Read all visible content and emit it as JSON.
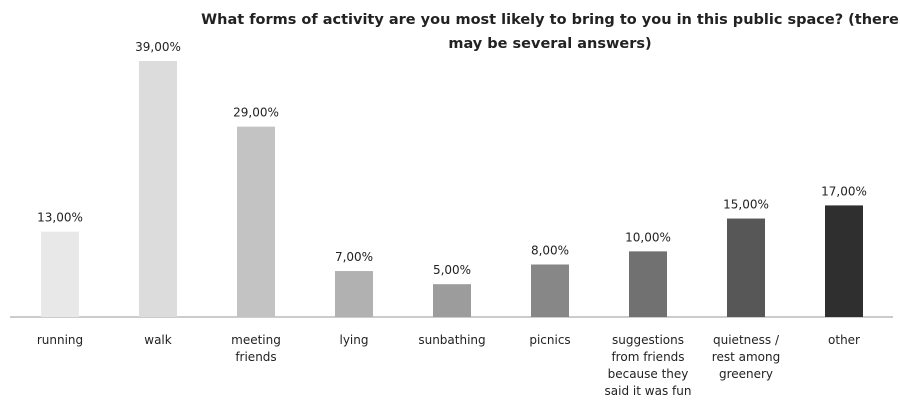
{
  "chart_data": {
    "type": "bar",
    "title": "What forms of activity are you most likely to bring to you in this public space? (there may be several answers)",
    "xlabel": "",
    "ylabel": "",
    "ylim": [
      0,
      40
    ],
    "grid": false,
    "legend": "none",
    "categories": [
      "running",
      "walk",
      "meeting friends",
      "lying",
      "sunbathing",
      "picnics",
      "suggestions from friends because they said it was fun",
      "quietness / rest among greenery",
      "other"
    ],
    "category_lines": [
      [
        "running"
      ],
      [
        "walk"
      ],
      [
        "meeting",
        "friends"
      ],
      [
        "lying"
      ],
      [
        "sunbathing"
      ],
      [
        "picnics"
      ],
      [
        "suggestions",
        "from friends",
        "because they",
        "said it was fun"
      ],
      [
        "quietness /",
        "rest among",
        "greenery"
      ],
      [
        "other"
      ]
    ],
    "values": [
      13,
      39,
      29,
      7,
      5,
      8,
      10,
      15,
      17
    ],
    "value_labels": [
      "13,00%",
      "39,00%",
      "29,00%",
      "7,00%",
      "5,00%",
      "8,00%",
      "10,00%",
      "15,00%",
      "17,00%"
    ],
    "colors": [
      "#e8e8e8",
      "#dcdcdc",
      "#c3c3c3",
      "#b1b1b1",
      "#9c9c9c",
      "#878787",
      "#717171",
      "#575757",
      "#2f2f2f"
    ]
  }
}
